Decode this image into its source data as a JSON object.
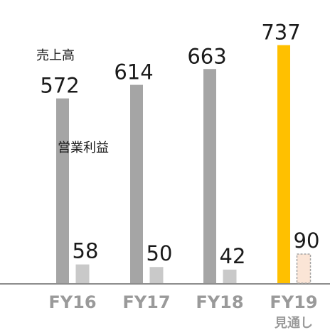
{
  "chart_data": {
    "type": "bar",
    "categories": [
      "FY16",
      "FY17",
      "FY18",
      "FY19"
    ],
    "category_sublabels": [
      "",
      "",
      "",
      "見通し"
    ],
    "series": [
      {
        "name": "売上高",
        "values": [
          572,
          614,
          663,
          737
        ]
      },
      {
        "name": "営業利益",
        "values": [
          58,
          50,
          42,
          90
        ]
      }
    ],
    "ylim": [
      0,
      780
    ],
    "grid": false,
    "legend": "inline labels on first category",
    "colors": {
      "sales": "#a5a5a5",
      "profit": "#c9c9c9",
      "sales_forecast": "#ffc000",
      "profit_forecast": "#fbe5d6",
      "profit_forecast_border": "#a5a5a5",
      "axis": "#8c8c8c"
    }
  }
}
